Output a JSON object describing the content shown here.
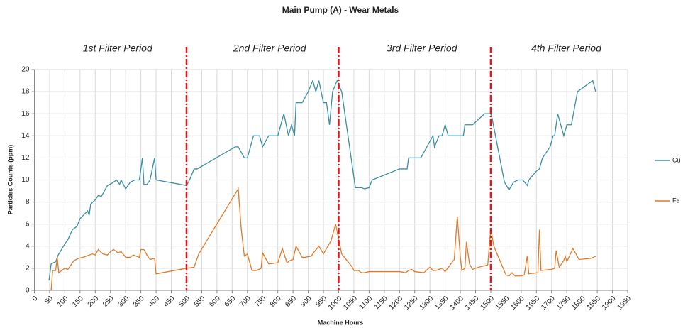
{
  "chart_data": {
    "type": "line",
    "title": "Main Pump (A) - Wear Metals",
    "x_label": "Machine Hours",
    "y_label": "Particles Counts (ppm)",
    "xlim": [
      0,
      1950
    ],
    "ylim": [
      0,
      20
    ],
    "xticks": [
      0,
      50,
      100,
      150,
      200,
      250,
      300,
      350,
      400,
      450,
      500,
      550,
      600,
      650,
      700,
      750,
      800,
      850,
      900,
      950,
      1000,
      1050,
      1100,
      1150,
      1200,
      1250,
      1300,
      1350,
      1400,
      1450,
      1500,
      1550,
      1600,
      1650,
      1700,
      1750,
      1800,
      1850,
      1900,
      1950
    ],
    "yticks": [
      0,
      2,
      4,
      6,
      8,
      10,
      12,
      14,
      16,
      18,
      20
    ],
    "grid": true,
    "legend": "right",
    "dividers": [
      500,
      1000,
      1500
    ],
    "divider_color": "#e8141c",
    "period_labels": [
      "1st Filter Period",
      "2nd Filter Period",
      "3rd Filter Period",
      "4th Filter Period"
    ],
    "series": [
      {
        "name": "Cu",
        "color": "#3a8fa0",
        "x": [
          48,
          55,
          70,
          78,
          100,
          110,
          125,
          140,
          150,
          175,
          180,
          185,
          200,
          210,
          220,
          240,
          255,
          270,
          280,
          285,
          300,
          315,
          330,
          345,
          355,
          360,
          370,
          380,
          395,
          400,
          500,
          510,
          525,
          535,
          660,
          670,
          690,
          700,
          720,
          740,
          750,
          770,
          800,
          820,
          835,
          845,
          855,
          860,
          880,
          900,
          915,
          925,
          935,
          950,
          960,
          970,
          980,
          995,
          1010,
          1055,
          1075,
          1085,
          1100,
          1110,
          1200,
          1225,
          1230,
          1270,
          1290,
          1310,
          1315,
          1330,
          1340,
          1350,
          1360,
          1410,
          1415,
          1440,
          1480,
          1500,
          1505,
          1545,
          1560,
          1575,
          1590,
          1605,
          1620,
          1625,
          1650,
          1660,
          1670,
          1695,
          1705,
          1710,
          1720,
          1740,
          1750,
          1765,
          1785,
          1835,
          1845
        ],
        "values": [
          0.9,
          2.4,
          2.6,
          3.2,
          4.2,
          4.6,
          5.5,
          5.8,
          6.5,
          7.2,
          6.8,
          7.8,
          8.2,
          8.6,
          8.5,
          9.5,
          9.7,
          10,
          9.6,
          10,
          9.2,
          9.8,
          10,
          10,
          12,
          9.6,
          9.6,
          10,
          12,
          10,
          9.5,
          10,
          11,
          11,
          13,
          13,
          12,
          12,
          14,
          14,
          13,
          14,
          14,
          16,
          14,
          15,
          14,
          17,
          17,
          18,
          19,
          18,
          19,
          17,
          17,
          15,
          18,
          19,
          18,
          9.3,
          9.3,
          9.2,
          9.3,
          10,
          11,
          11,
          12,
          12,
          13,
          14,
          13,
          14,
          14,
          15,
          14,
          14,
          15,
          15,
          16,
          16,
          15.5,
          9.8,
          9.1,
          9.8,
          10,
          10,
          9.5,
          10,
          10.8,
          11,
          12,
          13,
          14,
          14,
          16,
          14,
          15,
          15,
          18,
          19,
          18
        ]
      },
      {
        "name": "Fe",
        "color": "#e07b2a",
        "x": [
          55,
          60,
          70,
          75,
          80,
          100,
          110,
          130,
          145,
          160,
          190,
          200,
          210,
          225,
          240,
          250,
          260,
          275,
          285,
          300,
          315,
          325,
          345,
          350,
          360,
          370,
          380,
          395,
          400,
          500,
          525,
          540,
          670,
          680,
          690,
          700,
          715,
          730,
          745,
          750,
          770,
          800,
          815,
          830,
          840,
          850,
          860,
          880,
          890,
          910,
          920,
          935,
          950,
          975,
          990,
          1010,
          1045,
          1050,
          1065,
          1075,
          1085,
          1100,
          1200,
          1220,
          1230,
          1240,
          1250,
          1280,
          1300,
          1310,
          1320,
          1340,
          1350,
          1380,
          1390,
          1400,
          1405,
          1415,
          1420,
          1430,
          1440,
          1460,
          1490,
          1500,
          1510,
          1550,
          1560,
          1570,
          1580,
          1600,
          1610,
          1620,
          1625,
          1655,
          1660,
          1665,
          1700,
          1710,
          1715,
          1725,
          1740,
          1745,
          1750,
          1770,
          1790,
          1830,
          1845
        ],
        "values": [
          0,
          1.8,
          1.8,
          3,
          1.6,
          2,
          1.9,
          2.7,
          2.9,
          3,
          3.3,
          3.2,
          3.7,
          3.3,
          3.2,
          3.5,
          3.7,
          3.4,
          3.5,
          3,
          3,
          3.2,
          3,
          3.7,
          3.7,
          3.2,
          2.8,
          2.9,
          1.5,
          2,
          2.1,
          3.3,
          9.2,
          5.5,
          3.1,
          3.3,
          1.8,
          1.8,
          2,
          3.4,
          2.4,
          2.5,
          3.8,
          2.5,
          2.7,
          2.8,
          4,
          3,
          3,
          3.1,
          3.5,
          4,
          3.3,
          4.5,
          6,
          3.3,
          2.1,
          1.8,
          1.8,
          1.6,
          1.6,
          1.7,
          1.7,
          1.6,
          1.8,
          1.9,
          1.7,
          1.6,
          2.1,
          1.8,
          1.8,
          2,
          1.7,
          2.8,
          6.7,
          3,
          1.8,
          2,
          4.4,
          2.4,
          1.9,
          2.1,
          2.3,
          5.6,
          4,
          1.4,
          1.3,
          1.6,
          1.3,
          1.3,
          1.4,
          3.1,
          1.5,
          1.6,
          5.5,
          1.8,
          1.9,
          2,
          3.6,
          2.1,
          2.7,
          3.1,
          2.6,
          3.8,
          2.8,
          2.9,
          3.1
        ]
      }
    ]
  }
}
